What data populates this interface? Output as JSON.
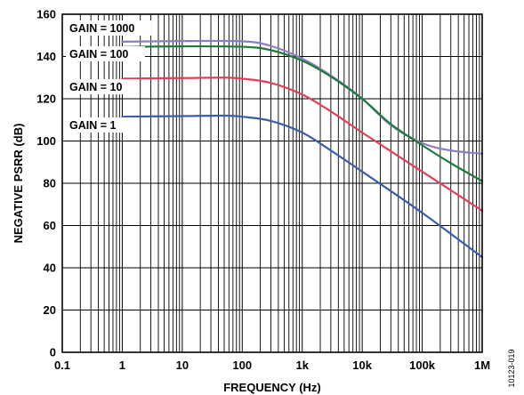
{
  "chart_data": {
    "type": "line",
    "xlabel": "FREQUENCY (Hz)",
    "ylabel": "NEGATIVE PSRR (dB)",
    "xscale": "log",
    "xlim": [
      0.1,
      1000000
    ],
    "ylim": [
      0,
      160
    ],
    "x_ticks": [
      0.1,
      1,
      10,
      100,
      1000,
      10000,
      100000,
      1000000
    ],
    "x_tick_labels": [
      "0.1",
      "1",
      "10",
      "100",
      "1k",
      "10k",
      "100k",
      "1M"
    ],
    "y_ticks": [
      0,
      20,
      40,
      60,
      80,
      100,
      120,
      140,
      160
    ],
    "y_tick_labels": [
      "0",
      "20",
      "40",
      "60",
      "80",
      "100",
      "120",
      "140",
      "160"
    ],
    "grid": true,
    "series": [
      {
        "name": "GAIN = 1000",
        "color": "#8e7cc3",
        "x": [
          1,
          10,
          100,
          300,
          1000,
          3000,
          10000,
          30000,
          100000,
          300000,
          1000000
        ],
        "y": [
          147,
          147.3,
          147.2,
          145,
          139,
          131,
          120,
          107.5,
          99,
          95.5,
          94
        ]
      },
      {
        "name": "GAIN = 100",
        "color": "#1f7a3a",
        "x": [
          1,
          10,
          100,
          300,
          1000,
          3000,
          10000,
          30000,
          100000,
          300000,
          1000000
        ],
        "y": [
          144.5,
          144.8,
          144.6,
          143,
          138,
          130.5,
          120,
          108,
          98,
          89.5,
          81
        ]
      },
      {
        "name": "GAIN = 10",
        "color": "#e0405a",
        "x": [
          1,
          10,
          50,
          100,
          300,
          1000,
          3000,
          10000,
          100000,
          1000000
        ],
        "y": [
          129.5,
          129.8,
          130,
          129.5,
          127.5,
          122,
          114,
          104,
          85.5,
          67
        ]
      },
      {
        "name": "GAIN = 1",
        "color": "#3a5ea8",
        "x": [
          1,
          10,
          50,
          100,
          300,
          1000,
          3000,
          10000,
          100000,
          1000000
        ],
        "y": [
          111.5,
          111.8,
          112,
          111.5,
          109.5,
          104,
          95.5,
          85.5,
          66,
          45
        ]
      }
    ],
    "annotations": [
      "GAIN = 1000",
      "GAIN = 100",
      "GAIN = 10",
      "GAIN = 1"
    ],
    "figure_id": "10123-019"
  }
}
